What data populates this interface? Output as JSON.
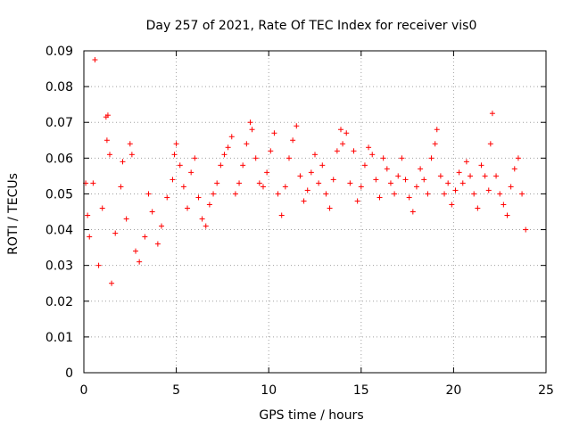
{
  "chart_data": {
    "type": "scatter",
    "title": "Day 257 of 2021, Rate Of TEC Index for receiver vis0",
    "xlabel": "GPS time / hours",
    "ylabel": "ROTI / TECUs",
    "xlim": [
      0,
      25
    ],
    "ylim": [
      0,
      0.09
    ],
    "xticks": [
      0,
      5,
      10,
      15,
      20,
      25
    ],
    "xtick_labels": [
      "0",
      "5",
      "10",
      "15",
      "20",
      "25"
    ],
    "yticks": [
      0,
      0.01,
      0.02,
      0.03,
      0.04,
      0.05,
      0.06,
      0.07,
      0.08,
      0.09
    ],
    "ytick_labels": [
      "0",
      "0.01",
      "0.02",
      "0.03",
      "0.04",
      "0.05",
      "0.06",
      "0.07",
      "0.08",
      "0.09"
    ],
    "grid": true,
    "marker": "+",
    "color": "#ff0000",
    "series": [
      {
        "name": "vis0",
        "points": [
          [
            0.1,
            0.053
          ],
          [
            0.2,
            0.044
          ],
          [
            0.3,
            0.038
          ],
          [
            0.5,
            0.053
          ],
          [
            0.6,
            0.0875
          ],
          [
            0.8,
            0.03
          ],
          [
            1.0,
            0.046
          ],
          [
            1.2,
            0.0715
          ],
          [
            1.25,
            0.065
          ],
          [
            1.3,
            0.072
          ],
          [
            1.4,
            0.061
          ],
          [
            1.5,
            0.025
          ],
          [
            1.7,
            0.039
          ],
          [
            2.0,
            0.052
          ],
          [
            2.1,
            0.059
          ],
          [
            2.3,
            0.043
          ],
          [
            2.5,
            0.064
          ],
          [
            2.6,
            0.061
          ],
          [
            2.8,
            0.034
          ],
          [
            3.0,
            0.031
          ],
          [
            3.3,
            0.038
          ],
          [
            3.5,
            0.05
          ],
          [
            3.7,
            0.045
          ],
          [
            4.0,
            0.036
          ],
          [
            4.2,
            0.041
          ],
          [
            4.5,
            0.049
          ],
          [
            4.8,
            0.054
          ],
          [
            4.9,
            0.061
          ],
          [
            5.0,
            0.064
          ],
          [
            5.2,
            0.058
          ],
          [
            5.4,
            0.052
          ],
          [
            5.6,
            0.046
          ],
          [
            5.8,
            0.056
          ],
          [
            6.0,
            0.06
          ],
          [
            6.2,
            0.049
          ],
          [
            6.4,
            0.043
          ],
          [
            6.6,
            0.041
          ],
          [
            6.8,
            0.047
          ],
          [
            7.0,
            0.05
          ],
          [
            7.2,
            0.053
          ],
          [
            7.4,
            0.058
          ],
          [
            7.6,
            0.061
          ],
          [
            7.8,
            0.063
          ],
          [
            8.0,
            0.066
          ],
          [
            8.2,
            0.05
          ],
          [
            8.4,
            0.053
          ],
          [
            8.6,
            0.058
          ],
          [
            8.8,
            0.064
          ],
          [
            9.0,
            0.07
          ],
          [
            9.1,
            0.068
          ],
          [
            9.3,
            0.06
          ],
          [
            9.5,
            0.053
          ],
          [
            9.7,
            0.052
          ],
          [
            9.9,
            0.056
          ],
          [
            10.1,
            0.062
          ],
          [
            10.3,
            0.067
          ],
          [
            10.5,
            0.05
          ],
          [
            10.7,
            0.044
          ],
          [
            10.9,
            0.052
          ],
          [
            11.1,
            0.06
          ],
          [
            11.3,
            0.065
          ],
          [
            11.5,
            0.069
          ],
          [
            11.7,
            0.055
          ],
          [
            11.9,
            0.048
          ],
          [
            12.1,
            0.051
          ],
          [
            12.3,
            0.056
          ],
          [
            12.5,
            0.061
          ],
          [
            12.7,
            0.053
          ],
          [
            12.9,
            0.058
          ],
          [
            13.1,
            0.05
          ],
          [
            13.3,
            0.046
          ],
          [
            13.5,
            0.054
          ],
          [
            13.7,
            0.062
          ],
          [
            13.9,
            0.068
          ],
          [
            14.0,
            0.064
          ],
          [
            14.2,
            0.067
          ],
          [
            14.4,
            0.053
          ],
          [
            14.6,
            0.062
          ],
          [
            14.8,
            0.048
          ],
          [
            15.0,
            0.052
          ],
          [
            15.2,
            0.058
          ],
          [
            15.4,
            0.063
          ],
          [
            15.6,
            0.061
          ],
          [
            15.8,
            0.054
          ],
          [
            16.0,
            0.049
          ],
          [
            16.2,
            0.06
          ],
          [
            16.4,
            0.057
          ],
          [
            16.6,
            0.053
          ],
          [
            16.8,
            0.05
          ],
          [
            17.0,
            0.055
          ],
          [
            17.2,
            0.06
          ],
          [
            17.4,
            0.054
          ],
          [
            17.6,
            0.049
          ],
          [
            17.8,
            0.045
          ],
          [
            18.0,
            0.052
          ],
          [
            18.2,
            0.057
          ],
          [
            18.4,
            0.054
          ],
          [
            18.6,
            0.05
          ],
          [
            18.8,
            0.06
          ],
          [
            19.0,
            0.064
          ],
          [
            19.1,
            0.068
          ],
          [
            19.3,
            0.055
          ],
          [
            19.5,
            0.05
          ],
          [
            19.7,
            0.053
          ],
          [
            19.9,
            0.047
          ],
          [
            20.1,
            0.051
          ],
          [
            20.3,
            0.056
          ],
          [
            20.5,
            0.053
          ],
          [
            20.7,
            0.059
          ],
          [
            20.9,
            0.055
          ],
          [
            21.1,
            0.05
          ],
          [
            21.3,
            0.046
          ],
          [
            21.5,
            0.058
          ],
          [
            21.7,
            0.055
          ],
          [
            21.9,
            0.051
          ],
          [
            22.0,
            0.064
          ],
          [
            22.1,
            0.0725
          ],
          [
            22.3,
            0.055
          ],
          [
            22.5,
            0.05
          ],
          [
            22.7,
            0.047
          ],
          [
            22.9,
            0.044
          ],
          [
            23.1,
            0.052
          ],
          [
            23.3,
            0.057
          ],
          [
            23.5,
            0.06
          ],
          [
            23.7,
            0.05
          ],
          [
            23.9,
            0.04
          ]
        ]
      }
    ]
  }
}
